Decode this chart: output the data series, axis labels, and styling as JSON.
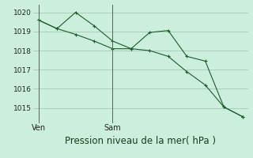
{
  "title": "Pression niveau de la mer( hPa )",
  "bg_color": "#cceedd",
  "grid_color": "#aaccbb",
  "line_color": "#1a5c2a",
  "line1_x": [
    0,
    1,
    2,
    3,
    4,
    5,
    6,
    7,
    8,
    9,
    10,
    11
  ],
  "line1_y": [
    1019.6,
    1019.15,
    1020.0,
    1019.3,
    1018.5,
    1018.1,
    1018.95,
    1019.05,
    1017.7,
    1017.45,
    1015.05,
    1014.55
  ],
  "line2_x": [
    0,
    1,
    2,
    3,
    4,
    5,
    6,
    7,
    8,
    9,
    10,
    11
  ],
  "line2_y": [
    1019.6,
    1019.15,
    1018.85,
    1018.5,
    1018.1,
    1018.1,
    1018.0,
    1017.7,
    1016.9,
    1016.2,
    1015.05,
    1014.55
  ],
  "xtick_positions": [
    0,
    4
  ],
  "xtick_labels": [
    "Ven",
    "Sam"
  ],
  "vline_x": [
    0,
    4
  ],
  "ylim": [
    1014.2,
    1020.4
  ],
  "yticks": [
    1015,
    1016,
    1017,
    1018,
    1019,
    1020
  ],
  "xlim": [
    -0.3,
    11.3
  ]
}
